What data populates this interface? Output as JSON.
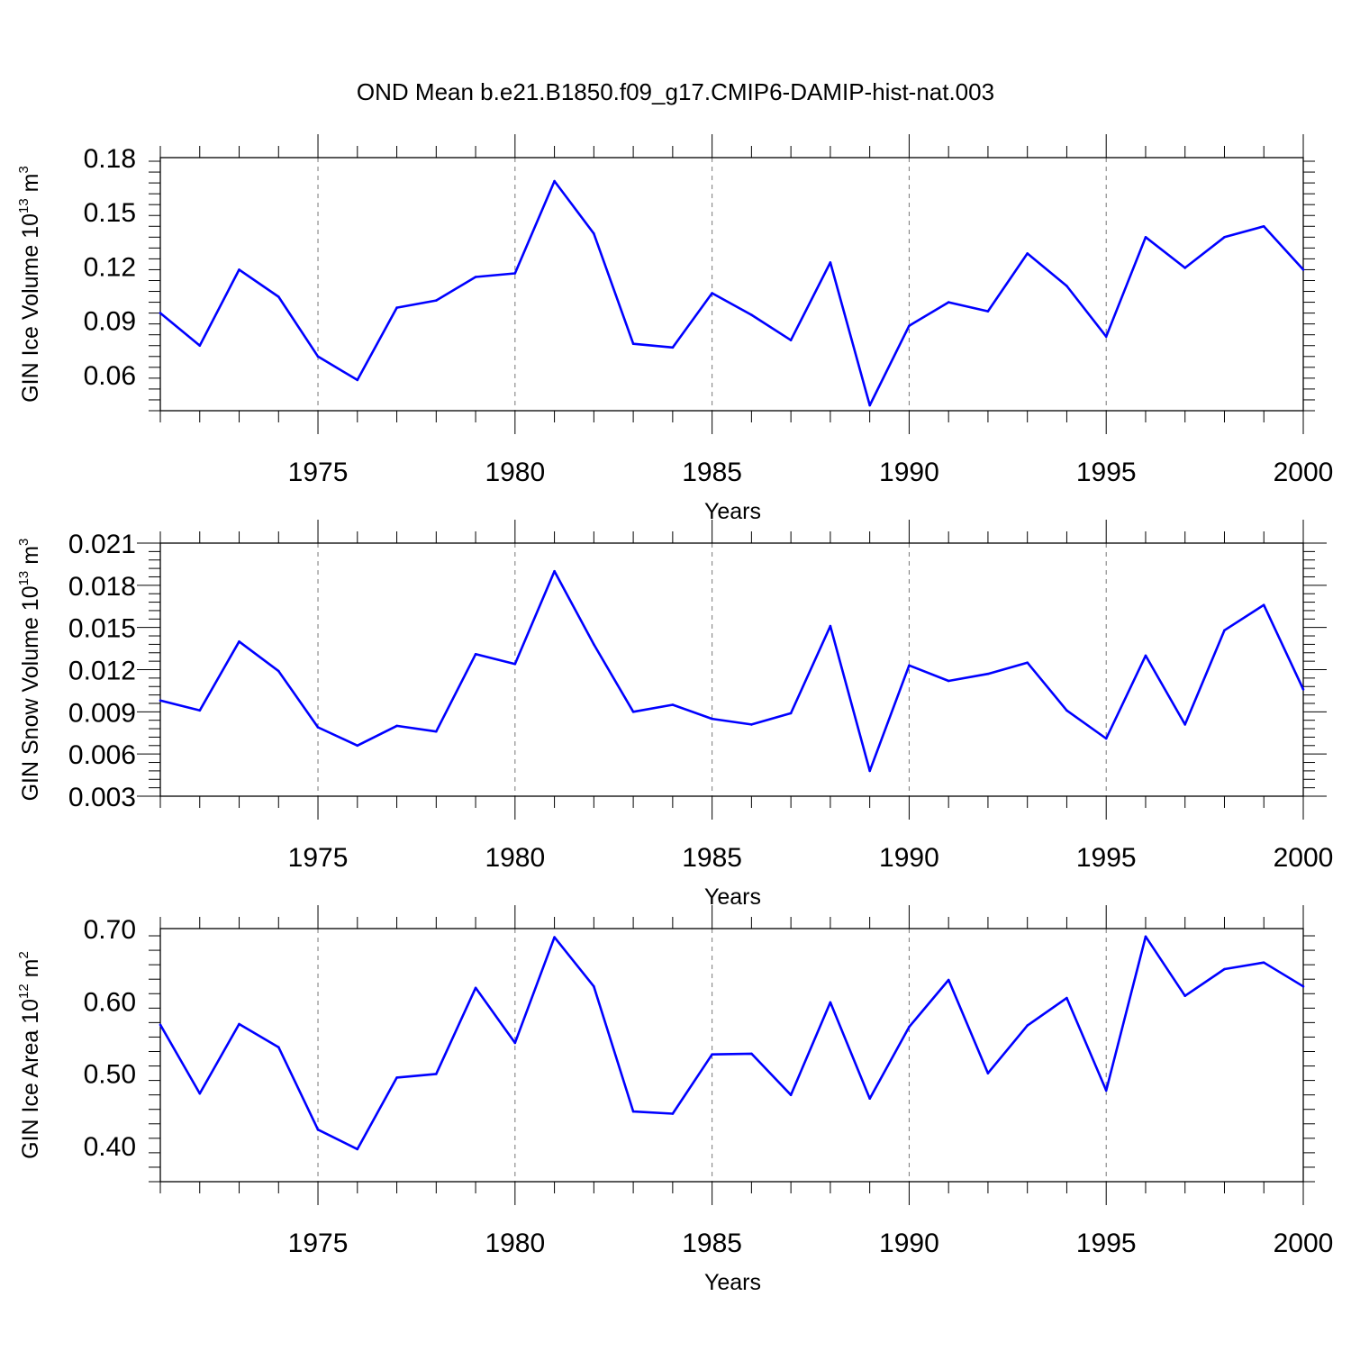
{
  "title": "OND Mean b.e21.B1850.f09_g17.CMIP6-DAMIP-hist-nat.003",
  "chart_data": [
    {
      "type": "line",
      "xlabel": "Years",
      "ylabel": {
        "text": "GIN Ice Volume 10",
        "sup": "13",
        "unit": " m",
        "unit_sup": "3"
      },
      "xlim": [
        1971,
        2000
      ],
      "ylim": [
        0.04,
        0.18
      ],
      "xticks": [
        1975,
        1980,
        1985,
        1990,
        1995,
        2000
      ],
      "xtick_labels": [
        "1975",
        "1980",
        "1985",
        "1990",
        "1995",
        "2000"
      ],
      "yticks": [
        0.06,
        0.09,
        0.12,
        0.15,
        0.18
      ],
      "ytick_labels": [
        "0.06",
        "0.09",
        "0.12",
        "0.15",
        "0.18"
      ],
      "grid": "vertical dashed at major x ticks",
      "line_color": "#0000ff",
      "x": [
        1971,
        1972,
        1973,
        1974,
        1975,
        1976,
        1977,
        1978,
        1979,
        1980,
        1981,
        1982,
        1983,
        1984,
        1985,
        1986,
        1987,
        1988,
        1989,
        1990,
        1991,
        1992,
        1993,
        1994,
        1995,
        1996,
        1997,
        1998,
        1999,
        2000
      ],
      "values": [
        0.094,
        0.076,
        0.118,
        0.103,
        0.07,
        0.057,
        0.097,
        0.101,
        0.114,
        0.116,
        0.167,
        0.138,
        0.077,
        0.075,
        0.105,
        0.093,
        0.079,
        0.122,
        0.043,
        0.087,
        0.1,
        0.095,
        0.127,
        0.109,
        0.081,
        0.136,
        0.119,
        0.136,
        0.142,
        0.118
      ]
    },
    {
      "type": "line",
      "xlabel": "Years",
      "ylabel": {
        "text": "GIN Snow Volume 10",
        "sup": "13",
        "unit": " m",
        "unit_sup": "3"
      },
      "xlim": [
        1971,
        2000
      ],
      "ylim": [
        0.003,
        0.021
      ],
      "xticks": [
        1975,
        1980,
        1985,
        1990,
        1995,
        2000
      ],
      "xtick_labels": [
        "1975",
        "1980",
        "1985",
        "1990",
        "1995",
        "2000"
      ],
      "yticks": [
        0.003,
        0.006,
        0.009,
        0.012,
        0.015,
        0.018,
        0.021
      ],
      "ytick_labels": [
        "0.003",
        "0.006",
        "0.009",
        "0.012",
        "0.015",
        "0.018",
        "0.021"
      ],
      "grid": "vertical dashed at major x ticks",
      "line_color": "#0000ff",
      "x": [
        1971,
        1972,
        1973,
        1974,
        1975,
        1976,
        1977,
        1978,
        1979,
        1980,
        1981,
        1982,
        1983,
        1984,
        1985,
        1986,
        1987,
        1988,
        1989,
        1990,
        1991,
        1992,
        1993,
        1994,
        1995,
        1996,
        1997,
        1998,
        1999,
        2000
      ],
      "values": [
        0.0098,
        0.0091,
        0.014,
        0.0119,
        0.0079,
        0.0066,
        0.008,
        0.0076,
        0.0131,
        0.0124,
        0.019,
        0.0138,
        0.009,
        0.0095,
        0.0085,
        0.0081,
        0.0089,
        0.0151,
        0.0048,
        0.0123,
        0.0112,
        0.0117,
        0.0125,
        0.0091,
        0.0071,
        0.013,
        0.0081,
        0.0148,
        0.0166,
        0.0106
      ]
    },
    {
      "type": "line",
      "xlabel": "Years",
      "ylabel": {
        "text": "GIN Ice Area 10",
        "sup": "12",
        "unit": " m",
        "unit_sup": "2"
      },
      "xlim": [
        1971,
        2000
      ],
      "ylim": [
        0.35,
        0.7
      ],
      "xticks": [
        1975,
        1980,
        1985,
        1990,
        1995,
        2000
      ],
      "xtick_labels": [
        "1975",
        "1980",
        "1985",
        "1990",
        "1995",
        "2000"
      ],
      "yticks": [
        0.4,
        0.5,
        0.6,
        0.7
      ],
      "ytick_labels": [
        "0.40",
        "0.50",
        "0.60",
        "0.70"
      ],
      "grid": "vertical dashed at major x ticks",
      "line_color": "#0000ff",
      "x": [
        1971,
        1972,
        1973,
        1974,
        1975,
        1976,
        1977,
        1978,
        1979,
        1980,
        1981,
        1982,
        1983,
        1984,
        1985,
        1986,
        1987,
        1988,
        1989,
        1990,
        1991,
        1992,
        1993,
        1994,
        1995,
        1996,
        1997,
        1998,
        1999,
        2000
      ],
      "values": [
        0.567,
        0.472,
        0.568,
        0.536,
        0.422,
        0.395,
        0.494,
        0.499,
        0.618,
        0.542,
        0.688,
        0.62,
        0.447,
        0.444,
        0.526,
        0.527,
        0.47,
        0.598,
        0.465,
        0.564,
        0.629,
        0.5,
        0.566,
        0.604,
        0.476,
        0.689,
        0.607,
        0.644,
        0.653,
        0.62
      ]
    }
  ]
}
